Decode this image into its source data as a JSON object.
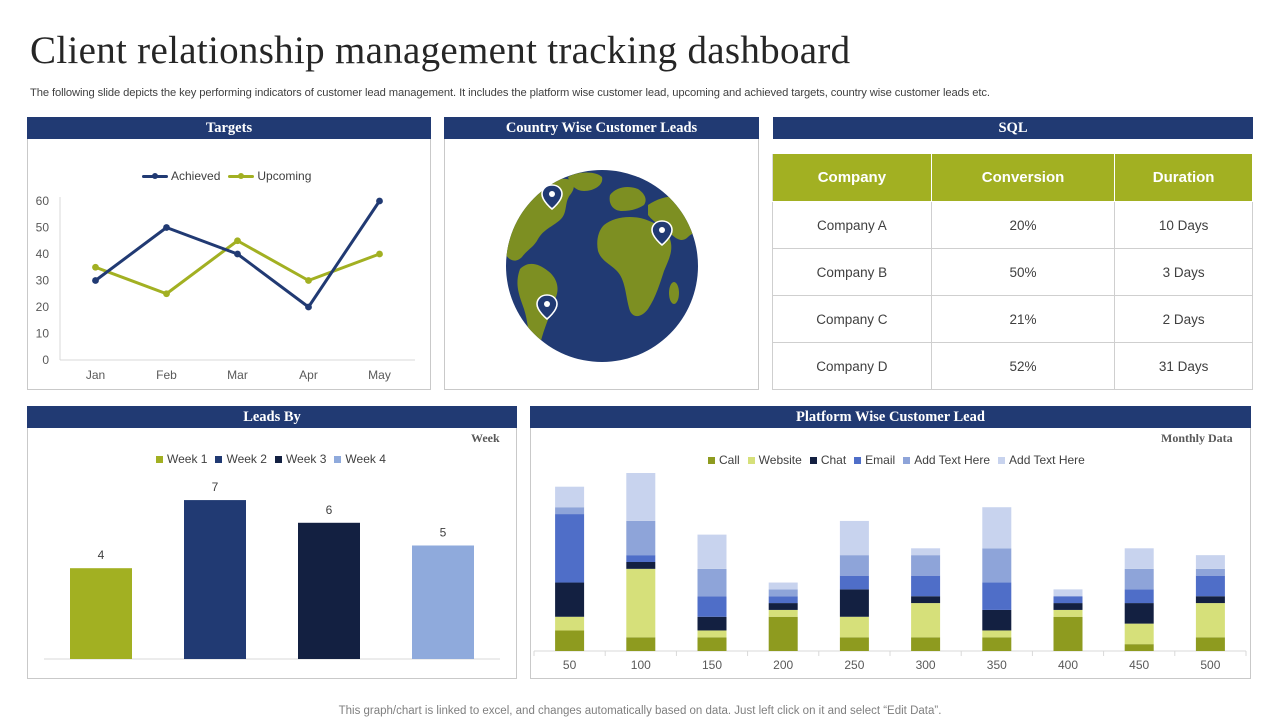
{
  "title": "Client relationship management tracking dashboard",
  "subtitle": "The following slide depicts the key performing indicators of customer lead management. It includes the platform wise customer lead, upcoming and achieved targets, country wise customer leads etc.",
  "footer": "This graph/chart is linked to excel, and changes automatically based on data. Just left click on it and select “Edit Data”.",
  "panels": {
    "targets": "Targets",
    "country": "Country Wise Customer Leads",
    "sql": "SQL",
    "leads_by": "Leads By",
    "platform": "Platform Wise Customer Lead"
  },
  "notes": {
    "week": "Week",
    "monthly": "Monthly Data"
  },
  "icons": [
    "location-pin-icon"
  ],
  "colors": {
    "navy": "#213a73",
    "olive": "#a2b022",
    "dark_navy": "#132041",
    "periwinkle": "#8faadc"
  },
  "sql_table": {
    "headers": [
      "Company",
      "Conversion",
      "Duration"
    ],
    "rows": [
      [
        "Company A",
        "20%",
        "10 Days"
      ],
      [
        "Company B",
        "50%",
        "3 Days"
      ],
      [
        "Company C",
        "21%",
        "2 Days"
      ],
      [
        "Company D",
        "52%",
        "31 Days"
      ]
    ]
  },
  "chart_data": [
    {
      "type": "line",
      "categories": [
        "Jan",
        "Feb",
        "Mar",
        "Apr",
        "May"
      ],
      "series": [
        {
          "name": "Achieved",
          "values": [
            30,
            50,
            40,
            20,
            60
          ],
          "color": "#213a73"
        },
        {
          "name": "Upcoming",
          "values": [
            35,
            25,
            45,
            30,
            40
          ],
          "color": "#a2b022"
        }
      ],
      "ylim": [
        0,
        60
      ],
      "yticks": [
        0,
        10,
        20,
        30,
        40,
        50,
        60
      ],
      "legend": "top"
    },
    {
      "type": "bar",
      "series": [
        {
          "name": "Week 1",
          "value": 4,
          "color": "#a2b022"
        },
        {
          "name": "Week 2",
          "value": 7,
          "color": "#213a73"
        },
        {
          "name": "Week 3",
          "value": 6,
          "color": "#132041"
        },
        {
          "name": "Week 4",
          "value": 5,
          "color": "#8faadc"
        }
      ],
      "ylim": [
        0,
        7.4
      ],
      "legend": "top"
    },
    {
      "type": "bar",
      "stacked": true,
      "categories": [
        "50",
        "100",
        "150",
        "200",
        "250",
        "300",
        "350",
        "400",
        "450",
        "500"
      ],
      "series": [
        {
          "name": "Call",
          "color": "#8e9b1f",
          "values": [
            3,
            2,
            2,
            5,
            2,
            2,
            2,
            5,
            1,
            2
          ]
        },
        {
          "name": "Website",
          "color": "#d6e07a",
          "values": [
            2,
            10,
            1,
            1,
            3,
            5,
            1,
            1,
            3,
            5
          ]
        },
        {
          "name": "Chat",
          "color": "#132041",
          "values": [
            5,
            1,
            2,
            1,
            4,
            1,
            3,
            1,
            3,
            1
          ]
        },
        {
          "name": "Email",
          "color": "#4f6ec8",
          "values": [
            10,
            1,
            3,
            1,
            2,
            3,
            4,
            1,
            2,
            3
          ]
        },
        {
          "name": "Add Text Here",
          "color": "#8ea4d9",
          "values": [
            1,
            5,
            4,
            1,
            3,
            3,
            5,
            0,
            3,
            1
          ]
        },
        {
          "name": "Add Text Here",
          "color": "#c8d3ee",
          "values": [
            3,
            7,
            5,
            1,
            5,
            1,
            6,
            1,
            3,
            2
          ]
        }
      ],
      "ylim": [
        0,
        26
      ],
      "legend": "top"
    }
  ]
}
